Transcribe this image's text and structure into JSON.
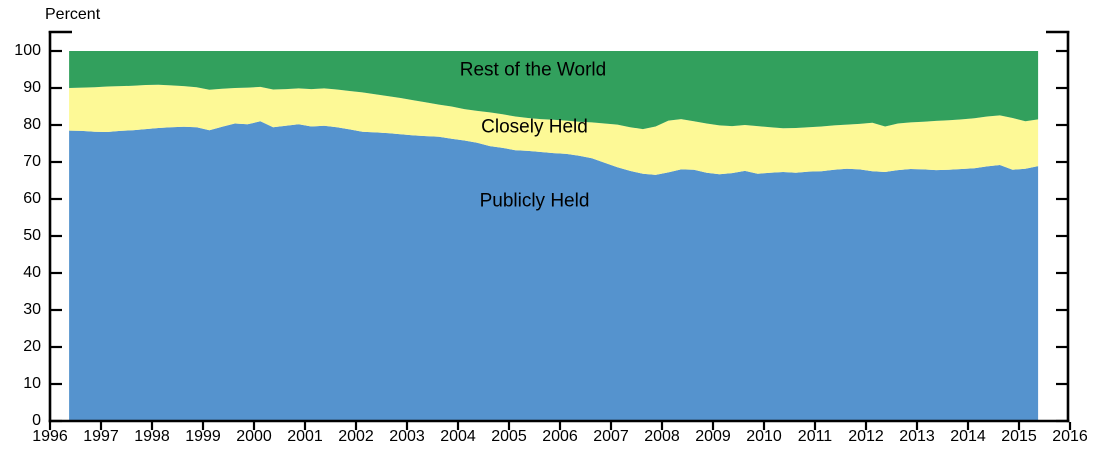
{
  "chart_data": {
    "type": "area",
    "stacked": true,
    "title": "",
    "xlabel": "",
    "ylabel": "Percent",
    "xlim": [
      1996,
      2016
    ],
    "ylim": [
      0,
      100
    ],
    "x_ticks": [
      1996,
      1997,
      1998,
      1999,
      2000,
      2001,
      2002,
      2003,
      2004,
      2005,
      2006,
      2007,
      2008,
      2009,
      2010,
      2011,
      2012,
      2013,
      2014,
      2015,
      2016
    ],
    "y_ticks": [
      0,
      10,
      20,
      30,
      40,
      50,
      60,
      70,
      80,
      90,
      100
    ],
    "grid": false,
    "legend_position": "inline-labels",
    "x": [
      1996.375,
      1996.625,
      1996.875,
      1997.125,
      1997.375,
      1997.625,
      1997.875,
      1998.125,
      1998.375,
      1998.625,
      1998.875,
      1999.125,
      1999.375,
      1999.625,
      1999.875,
      2000.125,
      2000.375,
      2000.625,
      2000.875,
      2001.125,
      2001.375,
      2001.625,
      2001.875,
      2002.125,
      2002.375,
      2002.625,
      2002.875,
      2003.125,
      2003.375,
      2003.625,
      2003.875,
      2004.125,
      2004.375,
      2004.625,
      2004.875,
      2005.125,
      2005.375,
      2005.625,
      2005.875,
      2006.125,
      2006.375,
      2006.625,
      2006.875,
      2007.125,
      2007.375,
      2007.625,
      2007.875,
      2008.125,
      2008.375,
      2008.625,
      2008.875,
      2009.125,
      2009.375,
      2009.625,
      2009.875,
      2010.125,
      2010.375,
      2010.625,
      2010.875,
      2011.125,
      2011.375,
      2011.625,
      2011.875,
      2012.125,
      2012.375,
      2012.625,
      2012.875,
      2013.125,
      2013.375,
      2013.625,
      2013.875,
      2014.125,
      2014.375,
      2014.625,
      2014.875,
      2015.125,
      2015.375
    ],
    "series": [
      {
        "name": "Publicly Held",
        "color": "#5593CE",
        "values": [
          78.5,
          78.4,
          78.2,
          78.1,
          78.4,
          78.6,
          78.9,
          79.2,
          79.4,
          79.5,
          79.4,
          78.6,
          79.5,
          80.4,
          80.2,
          81.0,
          79.4,
          79.8,
          80.2,
          79.6,
          79.8,
          79.4,
          78.8,
          78.2,
          78.0,
          77.8,
          77.5,
          77.2,
          77.0,
          76.8,
          76.3,
          75.8,
          75.2,
          74.3,
          73.8,
          73.2,
          73.0,
          72.7,
          72.4,
          72.2,
          71.7,
          71.0,
          69.8,
          68.6,
          67.6,
          66.8,
          66.5,
          67.2,
          68.0,
          67.9,
          67.1,
          66.7,
          67.0,
          67.6,
          66.8,
          67.1,
          67.3,
          67.1,
          67.4,
          67.5,
          67.9,
          68.2,
          68.0,
          67.5,
          67.3,
          67.8,
          68.1,
          68.0,
          67.8,
          67.9,
          68.1,
          68.3,
          68.8,
          69.2,
          67.9,
          68.2,
          68.9
        ]
      },
      {
        "name": "Closely Held",
        "color": "#FDF996",
        "values": [
          11.5,
          11.7,
          12.0,
          12.3,
          12.1,
          12.0,
          11.9,
          11.7,
          11.3,
          11.0,
          10.8,
          10.9,
          10.3,
          9.6,
          9.9,
          9.3,
          10.2,
          9.9,
          9.7,
          10.1,
          10.1,
          10.2,
          10.4,
          10.6,
          10.3,
          10.0,
          9.8,
          9.5,
          9.1,
          8.7,
          8.7,
          8.5,
          8.6,
          9.1,
          9.1,
          9.1,
          8.9,
          8.9,
          9.0,
          9.0,
          9.2,
          9.7,
          10.6,
          11.5,
          11.8,
          12.1,
          13.1,
          14.0,
          13.6,
          13.1,
          13.3,
          13.2,
          12.7,
          12.4,
          12.9,
          12.3,
          11.8,
          12.1,
          12.0,
          12.1,
          12.0,
          11.9,
          12.3,
          13.1,
          12.3,
          12.6,
          12.6,
          12.9,
          13.3,
          13.4,
          13.4,
          13.5,
          13.5,
          13.4,
          14.0,
          12.8,
          12.6
        ]
      },
      {
        "name": "Rest of the World",
        "color": "#32A05D",
        "values": [
          10.0,
          9.9,
          9.8,
          9.6,
          9.5,
          9.4,
          9.2,
          9.1,
          9.3,
          9.5,
          9.8,
          10.5,
          10.2,
          10.0,
          9.9,
          9.7,
          10.4,
          10.3,
          10.1,
          10.3,
          10.1,
          10.4,
          10.8,
          11.2,
          11.7,
          12.2,
          12.7,
          13.3,
          13.9,
          14.5,
          15.0,
          15.7,
          16.2,
          16.6,
          17.1,
          17.7,
          18.1,
          18.4,
          18.6,
          18.8,
          19.1,
          19.3,
          19.6,
          19.9,
          20.6,
          21.1,
          20.4,
          18.8,
          18.4,
          19.0,
          19.6,
          20.1,
          20.3,
          20.0,
          20.3,
          20.6,
          20.9,
          20.8,
          20.6,
          20.4,
          20.1,
          19.9,
          19.7,
          19.4,
          20.4,
          19.6,
          19.3,
          19.1,
          18.9,
          18.7,
          18.5,
          18.2,
          17.7,
          17.4,
          18.1,
          19.0,
          18.5
        ]
      }
    ],
    "annotations": [
      {
        "text": "Rest of the World",
        "x_year": 2005.47,
        "y_pct": 94.6
      },
      {
        "text": "Closely Held",
        "x_year": 2005.5,
        "y_pct": 79.2
      },
      {
        "text": "Publicly Held",
        "x_year": 2005.5,
        "y_pct": 59.2
      }
    ],
    "axis_color": "#000000"
  }
}
